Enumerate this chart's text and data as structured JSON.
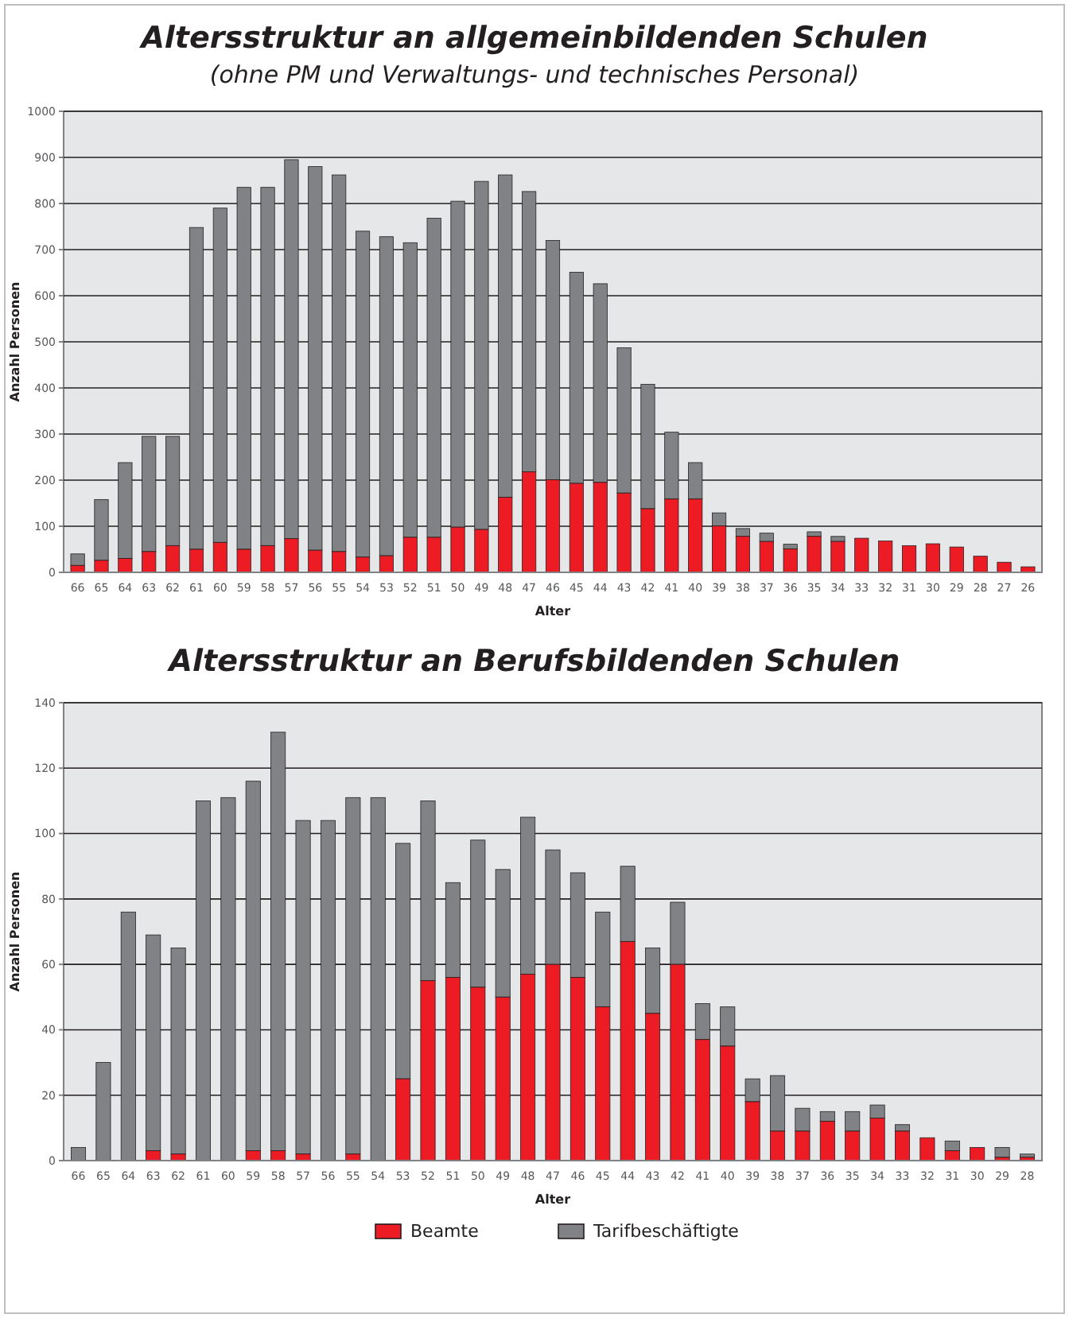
{
  "chart_data": [
    {
      "type": "bar",
      "title": "Altersstruktur an allgemeinbildenden Schulen",
      "subtitle": "(ohne PM und Verwaltungs- und technisches Personal)",
      "xlabel": "Alter",
      "ylabel": "Anzahl Personen",
      "stacked": true,
      "grid": "y",
      "ylim": [
        0,
        1000
      ],
      "yticks": [
        0,
        100,
        200,
        300,
        400,
        500,
        600,
        700,
        800,
        900,
        1000
      ],
      "categories": [
        "66",
        "65",
        "64",
        "63",
        "62",
        "61",
        "60",
        "59",
        "58",
        "57",
        "56",
        "55",
        "54",
        "53",
        "52",
        "51",
        "50",
        "49",
        "48",
        "47",
        "46",
        "45",
        "44",
        "43",
        "42",
        "41",
        "40",
        "39",
        "38",
        "37",
        "36",
        "35",
        "34",
        "33",
        "32",
        "31",
        "30",
        "29",
        "28",
        "27",
        "26"
      ],
      "series": [
        {
          "color": "#ed1c24",
          "values": [
            15,
            26,
            30,
            45,
            58,
            50,
            65,
            50,
            58,
            73,
            48,
            45,
            33,
            36,
            76,
            76,
            98,
            93,
            163,
            218,
            201,
            193,
            195,
            172,
            138,
            159,
            159,
            101,
            78,
            67,
            51,
            78,
            67,
            74,
            68,
            58,
            62,
            55,
            35,
            22,
            12
          ]
        },
        {
          "color": "#808285",
          "values": [
            25,
            132,
            208,
            250,
            237,
            698,
            725,
            785,
            777,
            822,
            832,
            817,
            707,
            692,
            639,
            692,
            707,
            755,
            699,
            608,
            519,
            458,
            431,
            315,
            270,
            145,
            79,
            28,
            17,
            18,
            10,
            10,
            11,
            0,
            0,
            0,
            0,
            0,
            0,
            0,
            0
          ]
        }
      ]
    },
    {
      "type": "bar",
      "title": "Altersstruktur an Berufsbildenden Schulen",
      "xlabel": "Alter",
      "ylabel": "Anzahl Personen",
      "stacked": true,
      "grid": "y",
      "legend": "bottom",
      "ylim": [
        0,
        140
      ],
      "yticks": [
        0,
        20,
        40,
        60,
        80,
        100,
        120,
        140
      ],
      "categories": [
        "66",
        "65",
        "64",
        "63",
        "62",
        "61",
        "60",
        "59",
        "58",
        "57",
        "56",
        "55",
        "54",
        "53",
        "52",
        "51",
        "50",
        "49",
        "48",
        "47",
        "46",
        "45",
        "44",
        "43",
        "42",
        "41",
        "40",
        "39",
        "38",
        "37",
        "36",
        "35",
        "34",
        "33",
        "32",
        "31",
        "30",
        "29",
        "28"
      ],
      "series": [
        {
          "name": "Beamte",
          "color": "#ed1c24",
          "values": [
            0,
            0,
            0,
            3,
            2,
            0,
            0,
            3,
            3,
            2,
            0,
            2,
            0,
            25,
            55,
            56,
            53,
            50,
            57,
            60,
            56,
            47,
            67,
            45,
            60,
            37,
            35,
            18,
            9,
            9,
            12,
            9,
            13,
            9,
            7,
            3,
            4,
            1,
            1
          ]
        },
        {
          "name": "Tarifbeschäftigte",
          "color": "#808285",
          "values": [
            4,
            30,
            76,
            66,
            63,
            110,
            111,
            113,
            128,
            102,
            104,
            109,
            111,
            72,
            55,
            29,
            45,
            39,
            48,
            35,
            32,
            29,
            23,
            20,
            19,
            11,
            12,
            7,
            17,
            7,
            3,
            6,
            4,
            2,
            0,
            3,
            0,
            3,
            1
          ]
        }
      ]
    }
  ]
}
